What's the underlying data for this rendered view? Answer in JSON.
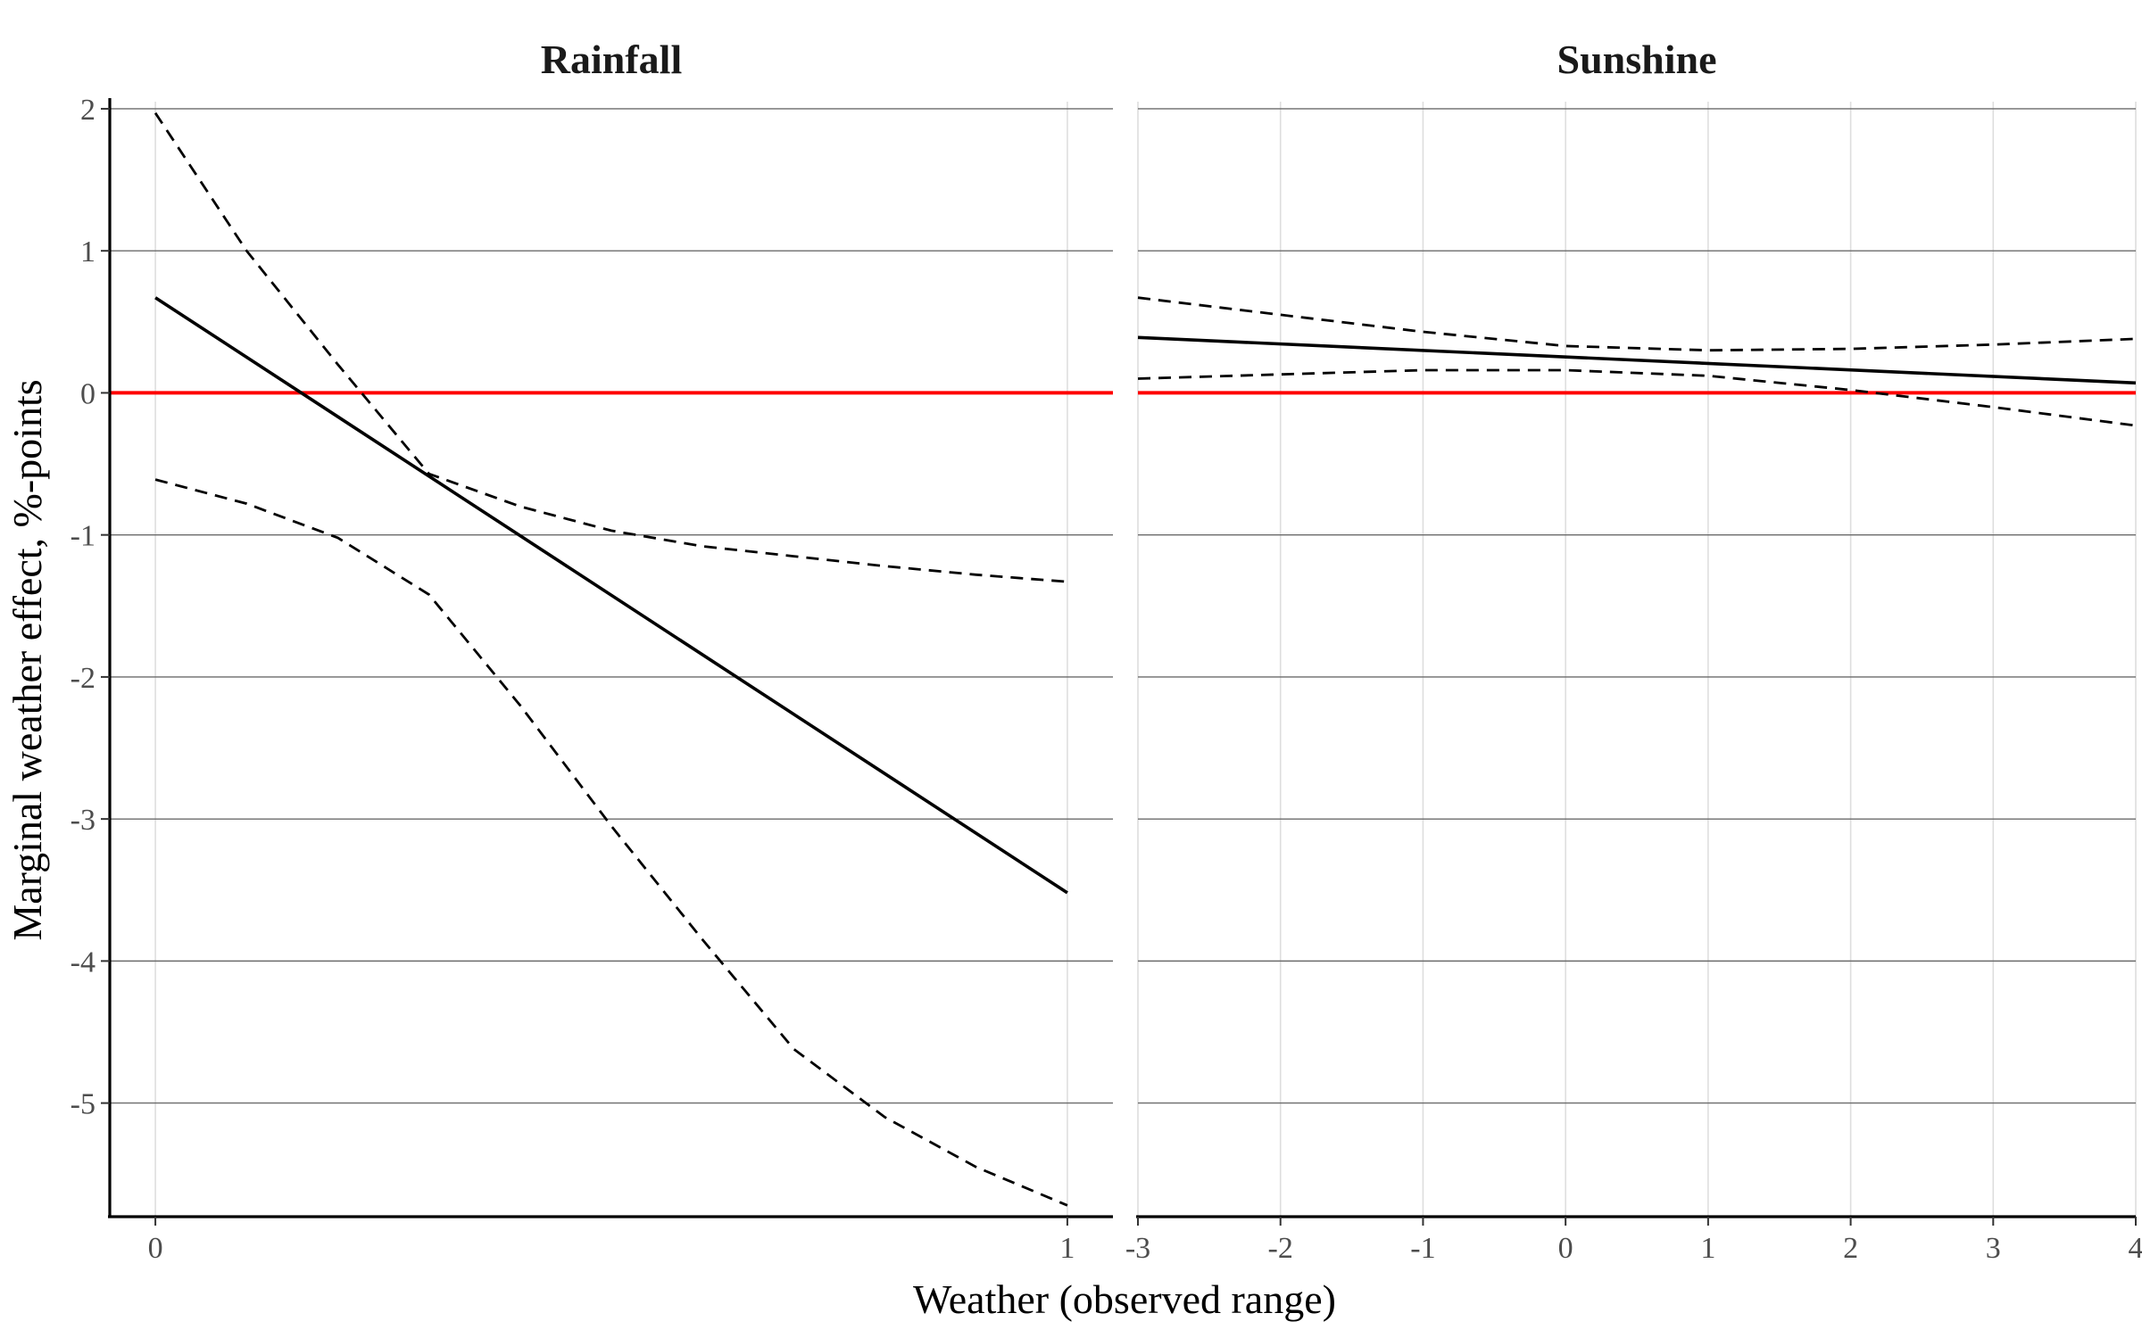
{
  "chart_data": {
    "type": "line",
    "xlabel": "Weather (observed range)",
    "ylabel": "Marginal weather effect, %-points",
    "ylim": [
      -5.8,
      2.05
    ],
    "yticks": [
      2,
      1,
      0,
      -1,
      -2,
      -3,
      -4,
      -5
    ],
    "reference_line": {
      "y": 0,
      "color": "#ff0000"
    },
    "grid": true,
    "panels": [
      {
        "title": "Rainfall",
        "xlim": [
          -0.05,
          1.05
        ],
        "xticks": [
          0,
          1
        ],
        "series": [
          {
            "style": "solid",
            "x": [
              0,
              1
            ],
            "values": [
              0.67,
              -3.52
            ]
          },
          {
            "style": "dashed",
            "x": [
              0,
              0.1,
              0.2,
              0.3,
              0.4,
              0.5,
              0.6,
              0.7,
              0.8,
              0.9,
              1.0
            ],
            "values": [
              1.97,
              1.0,
              0.2,
              -0.57,
              -0.8,
              -0.97,
              -1.08,
              -1.15,
              -1.22,
              -1.28,
              -1.33
            ]
          },
          {
            "style": "dashed",
            "x": [
              0,
              0.1,
              0.2,
              0.3,
              0.4,
              0.5,
              0.6,
              0.7,
              0.8,
              0.9,
              1.0
            ],
            "values": [
              -0.61,
              -0.78,
              -1.02,
              -1.42,
              -2.2,
              -3.05,
              -3.85,
              -4.62,
              -5.1,
              -5.45,
              -5.72
            ]
          }
        ]
      },
      {
        "title": "Sunshine",
        "xlim": [
          -3,
          4
        ],
        "xticks": [
          -3,
          -2,
          -1,
          0,
          1,
          2,
          3,
          4
        ],
        "series": [
          {
            "style": "solid",
            "x": [
              -3,
              4
            ],
            "values": [
              0.39,
              0.07
            ]
          },
          {
            "style": "dashed",
            "x": [
              -3,
              -2,
              -1,
              0,
              1,
              2,
              3,
              4
            ],
            "values": [
              0.67,
              0.55,
              0.43,
              0.33,
              0.3,
              0.31,
              0.34,
              0.38
            ]
          },
          {
            "style": "dashed",
            "x": [
              -3,
              -2,
              -1,
              0,
              1,
              2,
              3,
              4
            ],
            "values": [
              0.1,
              0.13,
              0.16,
              0.16,
              0.12,
              0.02,
              -0.1,
              -0.23
            ]
          }
        ]
      }
    ]
  }
}
